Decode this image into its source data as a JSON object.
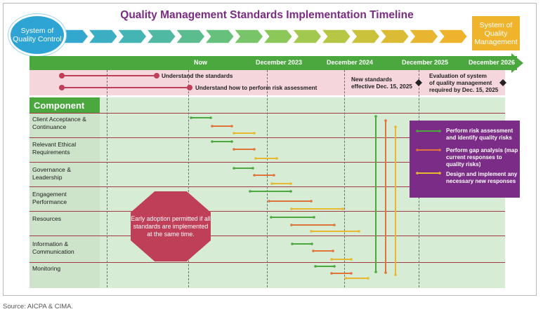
{
  "title": "Quality Management Standards Implementation Timeline",
  "start_label": "System of Quality Control",
  "end_label": "System of Quality Management",
  "timeline_labels": [
    "Now",
    "December 2023",
    "December 2024",
    "December 2025",
    "December 2026"
  ],
  "milestones": {
    "understand_standards": "Understand the standards",
    "understand_risk": "Understand how to perform risk assessment",
    "new_standards_line1": "New standards",
    "new_standards_line2": "effective Dec. 15, 2025",
    "evaluation_line1": "Evaluation of system",
    "evaluation_line2": "of quality management",
    "evaluation_line3": "required by Dec. 15, 2025"
  },
  "component_header": "Component",
  "components": [
    {
      "line1": "Client Acceptance &",
      "line2": "Continuance"
    },
    {
      "line1": "Relevant Ethical",
      "line2": "Requirements"
    },
    {
      "line1": "Governance &",
      "line2": "Leadership"
    },
    {
      "line1": "Engagement",
      "line2": "Performance"
    },
    {
      "line1": "Resources",
      "line2": ""
    },
    {
      "line1": "Information &",
      "line2": "Communication"
    },
    {
      "line1": "Monitoring",
      "line2": ""
    }
  ],
  "octagon_text": "Early adoption permitted if all standards are implemented at the same time.",
  "legend": [
    {
      "text": "Perform risk assessment and identify quality risks",
      "color": "#4aa83f"
    },
    {
      "text": "Perform gap analysis (map current responses to quality risks)",
      "color": "#e0733a"
    },
    {
      "text": "Design and implement any necessary new responses",
      "color": "#e8b830"
    }
  ],
  "colors": {
    "title": "#7a2b83",
    "green": "#4aa83f",
    "orange": "#e0733a",
    "yellow": "#e8b830",
    "magenta": "#c03f58",
    "purple": "#7a2c87",
    "blue": "#2ea4d4"
  },
  "source": "Source: AICPA & CIMA."
}
